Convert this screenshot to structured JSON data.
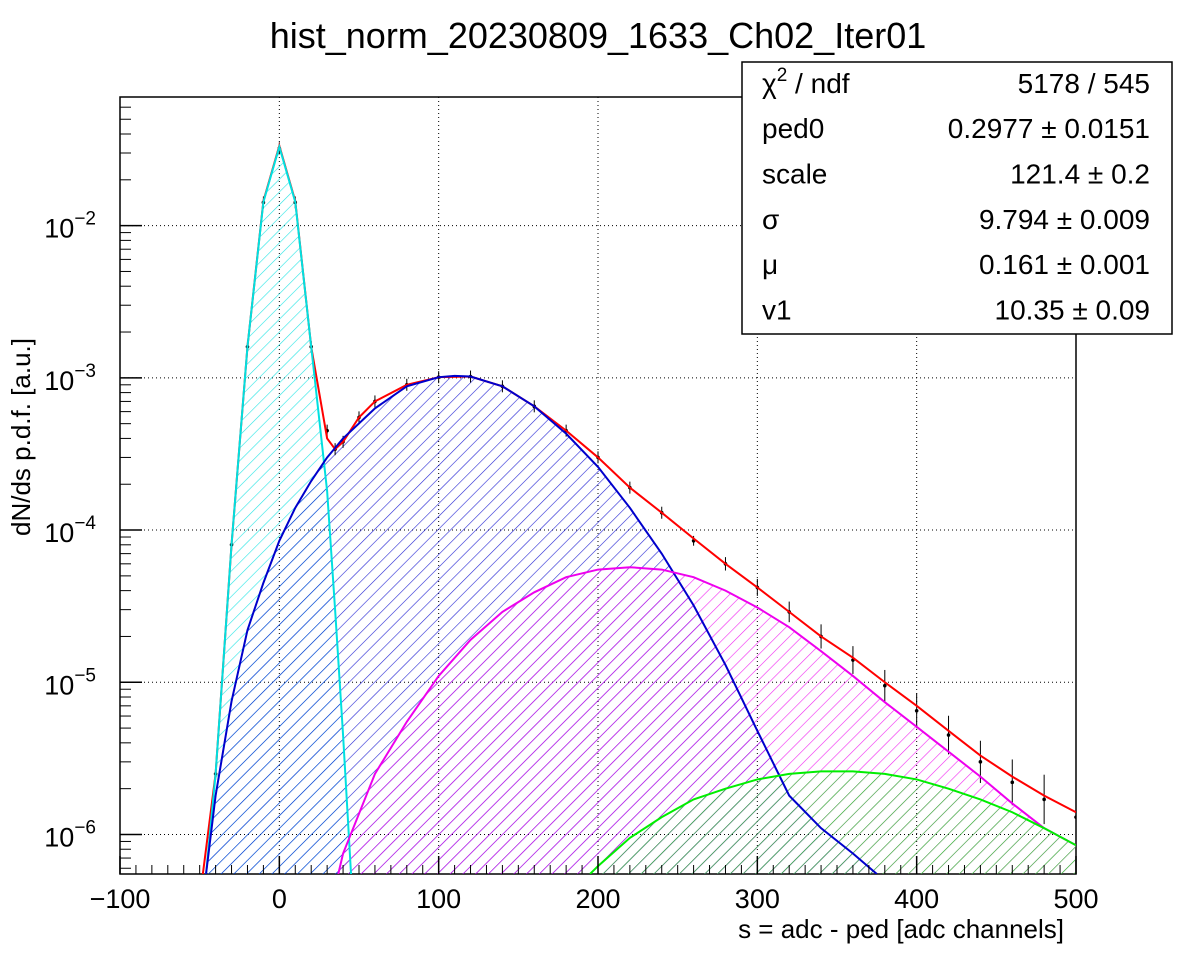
{
  "chart_data": {
    "type": "line",
    "title": "hist_norm_20230809_1633_Ch02_Iter01",
    "xlabel": "s = adc - ped [adc channels]",
    "ylabel": "dN/ds p.d.f. [a.u.]",
    "xlim": [
      -100,
      500
    ],
    "ylim": [
      5.5e-07,
      0.07
    ],
    "yscale": "log",
    "grid": true,
    "x_ticks": [
      -100,
      0,
      100,
      200,
      300,
      400,
      500
    ],
    "x_tick_labels": [
      "−100",
      "0",
      "100",
      "200",
      "300",
      "400",
      "500"
    ],
    "y_ticks": [
      1e-06,
      1e-05,
      0.0001,
      0.001,
      0.01
    ],
    "y_tick_labels": [
      {
        "base": "10",
        "exp": "−6"
      },
      {
        "base": "10",
        "exp": "−5"
      },
      {
        "base": "10",
        "exp": "−4"
      },
      {
        "base": "10",
        "exp": "−3"
      },
      {
        "base": "10",
        "exp": "−2"
      }
    ],
    "stats_box": {
      "placement": "top-right",
      "rows": [
        {
          "label_base": "χ",
          "label_sup": "2",
          "label_rest": " / ndf",
          "value": "5178 / 545"
        },
        {
          "label_base": "ped0",
          "label_sup": "",
          "label_rest": "",
          "value": "0.2977 ± 0.0151"
        },
        {
          "label_base": "scale",
          "label_sup": "",
          "label_rest": "",
          "value": "121.4 ± 0.2"
        },
        {
          "label_base": "σ",
          "label_sup": "",
          "label_rest": "",
          "value": "9.794 ± 0.009"
        },
        {
          "label_base": "μ",
          "label_sup": "",
          "label_rest": "",
          "value": "0.161 ± 0.001"
        },
        {
          "label_base": "v1",
          "label_sup": "",
          "label_rest": "",
          "value": "10.35 ± 0.09"
        }
      ]
    },
    "series": [
      {
        "color": "#000000",
        "style": "points-with-error-bars",
        "x": [
          -40,
          -30,
          -20,
          -10,
          0,
          10,
          20,
          30,
          35,
          40,
          50,
          60,
          80,
          100,
          120,
          140,
          160,
          180,
          200,
          220,
          240,
          260,
          280,
          300,
          320,
          340,
          360,
          380,
          400,
          420,
          440,
          460,
          480,
          500
        ],
        "y": [
          2.5e-06,
          8e-05,
          0.0016,
          0.0142,
          0.0322,
          0.0142,
          0.0016,
          0.00045,
          0.00034,
          0.00038,
          0.00055,
          0.0007,
          0.0009,
          0.00101,
          0.00102,
          0.00088,
          0.00065,
          0.00045,
          0.0003,
          0.00019,
          0.00013,
          8.5e-05,
          6e-05,
          4.2e-05,
          2.9e-05,
          2e-05,
          1.4e-05,
          9.5e-06,
          6.5e-06,
          4.5e-06,
          3e-06,
          2.2e-06,
          1.7e-06,
          1.3e-06
        ]
      },
      {
        "color": "#ff0000",
        "style": "line",
        "x": [
          -48,
          -40,
          -30,
          -20,
          -10,
          0,
          10,
          20,
          30,
          35,
          40,
          50,
          60,
          80,
          100,
          120,
          140,
          160,
          180,
          200,
          220,
          240,
          260,
          280,
          300,
          320,
          340,
          360,
          380,
          400,
          420,
          440,
          460,
          480,
          500
        ],
        "y": [
          5.5e-07,
          2.5e-06,
          8e-05,
          0.0016,
          0.0145,
          0.0335,
          0.0145,
          0.0016,
          0.0004,
          0.00034,
          0.00038,
          0.00055,
          0.0007,
          0.0009,
          0.00101,
          0.00102,
          0.00088,
          0.00065,
          0.00045,
          0.0003,
          0.00019,
          0.00013,
          8.8e-05,
          6e-05,
          4.2e-05,
          2.9e-05,
          2e-05,
          1.45e-05,
          1e-05,
          7e-06,
          4.8e-06,
          3.3e-06,
          2.4e-06,
          1.8e-06,
          1.4e-06
        ]
      },
      {
        "color": "#00e0e0",
        "style": "line-hatched",
        "x": [
          -46,
          -40,
          -30,
          -20,
          -10,
          0,
          10,
          20,
          25,
          30,
          35,
          40,
          45
        ],
        "y": [
          5.5e-07,
          2.5e-06,
          8e-05,
          0.0016,
          0.0143,
          0.033,
          0.0143,
          0.0016,
          0.00054,
          0.00018,
          3e-05,
          4.5e-06,
          5.5e-07
        ]
      },
      {
        "color": "#0000cc",
        "style": "line-hatched",
        "x": [
          -46,
          -40,
          -30,
          -20,
          -10,
          0,
          10,
          20,
          30,
          40,
          60,
          80,
          100,
          110,
          120,
          140,
          160,
          180,
          200,
          220,
          240,
          260,
          280,
          300,
          320,
          340,
          360,
          375
        ],
        "y": [
          5.5e-07,
          1.8e-06,
          7.5e-06,
          2.2e-05,
          4.5e-05,
          8.5e-05,
          0.00014,
          0.00021,
          0.0003,
          0.0004,
          0.00063,
          0.00088,
          0.00101,
          0.00103,
          0.00102,
          0.00088,
          0.00065,
          0.00043,
          0.00026,
          0.00014,
          7e-05,
          3.2e-05,
          1.3e-05,
          4.8e-06,
          1.8e-06,
          1.1e-06,
          7.5e-07,
          5.5e-07
        ]
      },
      {
        "color": "#ee00ee",
        "style": "line-hatched",
        "x": [
          37,
          40,
          60,
          80,
          100,
          120,
          140,
          160,
          180,
          200,
          220,
          240,
          260,
          280,
          300,
          320,
          340,
          360,
          380,
          400,
          420,
          440,
          460,
          480,
          500
        ],
        "y": [
          5.5e-07,
          7.5e-07,
          2.5e-06,
          5.5e-06,
          1.1e-05,
          1.9e-05,
          2.9e-05,
          3.9e-05,
          4.9e-05,
          5.5e-05,
          5.7e-05,
          5.5e-05,
          4.9e-05,
          4e-05,
          3.1e-05,
          2.3e-05,
          1.6e-05,
          1.1e-05,
          7.4e-06,
          5.1e-06,
          3.5e-06,
          2.4e-06,
          1.6e-06,
          1.1e-06,
          8.5e-07
        ]
      },
      {
        "color": "#00ee00",
        "style": "line-hatched",
        "x": [
          195,
          200,
          220,
          240,
          260,
          280,
          300,
          320,
          340,
          360,
          380,
          400,
          420,
          440,
          460,
          480,
          500
        ],
        "y": [
          5.5e-07,
          6.2e-07,
          9.5e-07,
          1.3e-06,
          1.7e-06,
          2e-06,
          2.3e-06,
          2.5e-06,
          2.6e-06,
          2.6e-06,
          2.5e-06,
          2.3e-06,
          2e-06,
          1.7e-06,
          1.4e-06,
          1.1e-06,
          8.5e-07
        ]
      }
    ]
  }
}
